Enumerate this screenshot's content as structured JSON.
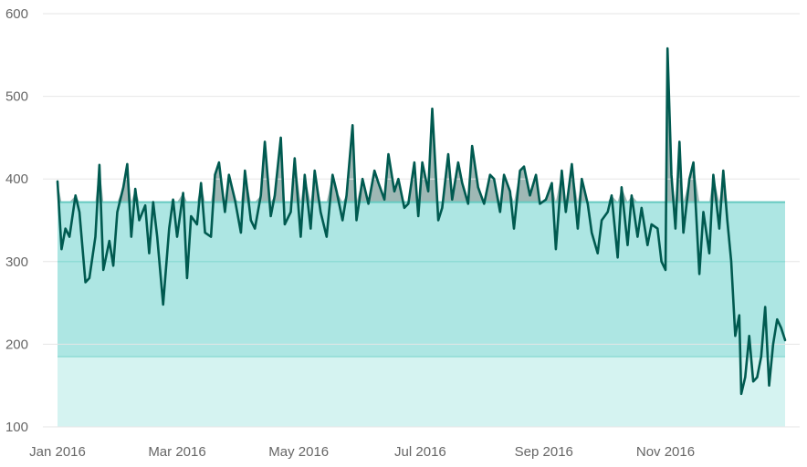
{
  "chart_data": {
    "type": "line",
    "title": "",
    "xlabel": "",
    "ylabel": "",
    "ylim": [
      100,
      600
    ],
    "y_ticks": [
      100,
      200,
      300,
      400,
      500,
      600
    ],
    "y_tick_labels": [
      "100",
      "200",
      "300",
      "400",
      "500",
      "600"
    ],
    "x_ticks": [
      "2016-01-01",
      "2016-03-01",
      "2016-05-01",
      "2016-07-01",
      "2016-09-01",
      "2016-11-01"
    ],
    "x_tick_labels": [
      "Jan 2016",
      "Mar 2016",
      "May 2016",
      "Jul 2016",
      "Sep 2016",
      "Nov 2016"
    ],
    "x_range": [
      "2016-01-01",
      "2016-12-31"
    ],
    "grid": "horizontal",
    "bands": [
      {
        "from": 100,
        "to": 185,
        "color": "#d5f3f1"
      },
      {
        "from": 185,
        "to": 372,
        "color": "#ade6e3"
      }
    ],
    "reference_lines": [
      {
        "value": 185,
        "color": "#8fdcd6"
      },
      {
        "value": 300,
        "color": "#8fdcd6"
      },
      {
        "value": 372,
        "color": "#66c9c0"
      }
    ],
    "colors": {
      "line": "#005a50",
      "above_band_fill": "#9fb8b5"
    },
    "series": [
      {
        "x": [
          "2016-01-01",
          "2016-01-03",
          "2016-01-05",
          "2016-01-07",
          "2016-01-10",
          "2016-01-12",
          "2016-01-15",
          "2016-01-17",
          "2016-01-20",
          "2016-01-22",
          "2016-01-24",
          "2016-01-27",
          "2016-01-29",
          "2016-01-31",
          "2016-02-03",
          "2016-02-05",
          "2016-02-07",
          "2016-02-09",
          "2016-02-11",
          "2016-02-14",
          "2016-02-16",
          "2016-02-18",
          "2016-02-20",
          "2016-02-23",
          "2016-02-26",
          "2016-02-28",
          "2016-03-01",
          "2016-03-04",
          "2016-03-06",
          "2016-03-08",
          "2016-03-11",
          "2016-03-13",
          "2016-03-15",
          "2016-03-18",
          "2016-03-20",
          "2016-03-22",
          "2016-03-25",
          "2016-03-27",
          "2016-03-30",
          "2016-04-02",
          "2016-04-04",
          "2016-04-07",
          "2016-04-09",
          "2016-04-12",
          "2016-04-14",
          "2016-04-17",
          "2016-04-19",
          "2016-04-22",
          "2016-04-24",
          "2016-04-27",
          "2016-04-29",
          "2016-05-02",
          "2016-05-04",
          "2016-05-07",
          "2016-05-09",
          "2016-05-12",
          "2016-05-15",
          "2016-05-18",
          "2016-05-20",
          "2016-05-23",
          "2016-05-25",
          "2016-05-28",
          "2016-05-30",
          "2016-06-02",
          "2016-06-05",
          "2016-06-08",
          "2016-06-10",
          "2016-06-13",
          "2016-06-15",
          "2016-06-18",
          "2016-06-20",
          "2016-06-23",
          "2016-06-25",
          "2016-06-28",
          "2016-06-30",
          "2016-07-02",
          "2016-07-05",
          "2016-07-07",
          "2016-07-10",
          "2016-07-12",
          "2016-07-15",
          "2016-07-17",
          "2016-07-20",
          "2016-07-22",
          "2016-07-25",
          "2016-07-27",
          "2016-07-30",
          "2016-08-02",
          "2016-08-05",
          "2016-08-07",
          "2016-08-10",
          "2016-08-12",
          "2016-08-15",
          "2016-08-17",
          "2016-08-20",
          "2016-08-22",
          "2016-08-25",
          "2016-08-28",
          "2016-08-30",
          "2016-09-02",
          "2016-09-05",
          "2016-09-07",
          "2016-09-10",
          "2016-09-12",
          "2016-09-15",
          "2016-09-18",
          "2016-09-20",
          "2016-09-23",
          "2016-09-25",
          "2016-09-28",
          "2016-09-30",
          "2016-10-03",
          "2016-10-05",
          "2016-10-08",
          "2016-10-10",
          "2016-10-13",
          "2016-10-15",
          "2016-10-18",
          "2016-10-20",
          "2016-10-23",
          "2016-10-25",
          "2016-10-28",
          "2016-10-30",
          "2016-11-01",
          "2016-11-02",
          "2016-11-04",
          "2016-11-06",
          "2016-11-08",
          "2016-11-10",
          "2016-11-13",
          "2016-11-15",
          "2016-11-18",
          "2016-11-20",
          "2016-11-23",
          "2016-11-25",
          "2016-11-28",
          "2016-11-30",
          "2016-12-02",
          "2016-12-04",
          "2016-12-06",
          "2016-12-08",
          "2016-12-09",
          "2016-12-11",
          "2016-12-13",
          "2016-12-15",
          "2016-12-17",
          "2016-12-19",
          "2016-12-21",
          "2016-12-23",
          "2016-12-25",
          "2016-12-27",
          "2016-12-29",
          "2016-12-31"
        ],
        "values": [
          397,
          315,
          340,
          330,
          380,
          360,
          275,
          280,
          330,
          417,
          290,
          325,
          295,
          360,
          390,
          418,
          330,
          388,
          350,
          368,
          310,
          372,
          330,
          248,
          340,
          375,
          330,
          383,
          280,
          355,
          345,
          395,
          335,
          330,
          405,
          420,
          360,
          405,
          375,
          335,
          410,
          350,
          340,
          380,
          445,
          355,
          380,
          450,
          345,
          360,
          425,
          330,
          405,
          340,
          410,
          360,
          330,
          405,
          385,
          350,
          380,
          465,
          350,
          400,
          370,
          410,
          395,
          375,
          430,
          385,
          400,
          365,
          370,
          420,
          355,
          420,
          385,
          485,
          350,
          365,
          430,
          375,
          420,
          395,
          370,
          440,
          390,
          370,
          405,
          400,
          360,
          405,
          385,
          340,
          410,
          415,
          380,
          405,
          370,
          375,
          395,
          315,
          410,
          360,
          418,
          340,
          400,
          370,
          335,
          310,
          350,
          360,
          380,
          305,
          390,
          320,
          380,
          330,
          365,
          320,
          345,
          340,
          300,
          290,
          558,
          405,
          340,
          445,
          335,
          400,
          420,
          285,
          360,
          310,
          405,
          340,
          410,
          350,
          300,
          210,
          235,
          140,
          160,
          210,
          155,
          160,
          185,
          245,
          150,
          200,
          230,
          220,
          205
        ]
      }
    ]
  }
}
